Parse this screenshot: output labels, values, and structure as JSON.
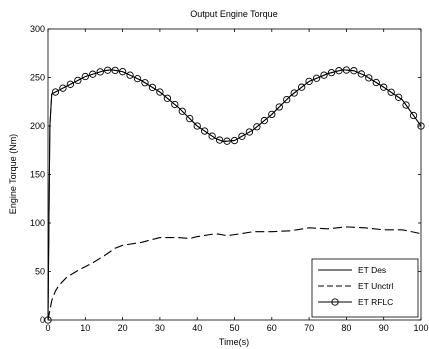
{
  "chart_data": {
    "type": "line",
    "title": "Output Engine Torque",
    "xlabel": "Time(s)",
    "ylabel": "Engine Torque (Nm)",
    "xlim": [
      0,
      100
    ],
    "ylim": [
      0,
      300
    ],
    "xticks": [
      0,
      10,
      20,
      30,
      40,
      50,
      60,
      70,
      80,
      90,
      100
    ],
    "yticks": [
      0,
      50,
      100,
      150,
      200,
      250,
      300
    ],
    "grid": false,
    "legend_position": "bottom-right",
    "series": [
      {
        "name": "ET Des",
        "line": "solid",
        "marker": "none",
        "color": "#000000",
        "x": [
          0,
          0.5,
          1,
          5,
          10,
          15,
          17,
          20,
          25,
          30,
          35,
          40,
          45,
          47,
          50,
          55,
          60,
          65,
          70,
          75,
          79,
          82,
          85,
          90,
          95,
          100
        ],
        "y": [
          0,
          200,
          233,
          241,
          251,
          257,
          258,
          256,
          247,
          235,
          219,
          200,
          187,
          184,
          185,
          196,
          212,
          231,
          246,
          254,
          258,
          257,
          252,
          240,
          227,
          200
        ]
      },
      {
        "name": "ET Unctrl",
        "line": "dash",
        "marker": "none",
        "color": "#000000",
        "x": [
          0,
          1,
          2,
          3,
          5,
          8,
          10,
          12,
          15,
          18,
          20,
          25,
          30,
          35,
          38,
          40,
          45,
          48,
          50,
          55,
          60,
          65,
          70,
          75,
          80,
          85,
          90,
          95,
          100
        ],
        "y": [
          0,
          20,
          30,
          36,
          44,
          51,
          55,
          59,
          66,
          74,
          77,
          80,
          85,
          85,
          84,
          86,
          89,
          87,
          88,
          91,
          91,
          92,
          95,
          94,
          96,
          95,
          93,
          93,
          89
        ]
      },
      {
        "name": "ET RFLC",
        "line": "solid",
        "marker": "circle",
        "color": "#000000",
        "x": [
          0,
          0.5,
          1,
          5,
          10,
          15,
          17,
          20,
          25,
          30,
          35,
          40,
          45,
          47,
          50,
          55,
          60,
          65,
          70,
          75,
          79,
          82,
          85,
          90,
          95,
          100
        ],
        "y": [
          0,
          200,
          233,
          241,
          251,
          257,
          258,
          256,
          247,
          235,
          219,
          200,
          187,
          184,
          185,
          196,
          212,
          231,
          246,
          254,
          258,
          257,
          252,
          240,
          227,
          200
        ]
      }
    ]
  }
}
